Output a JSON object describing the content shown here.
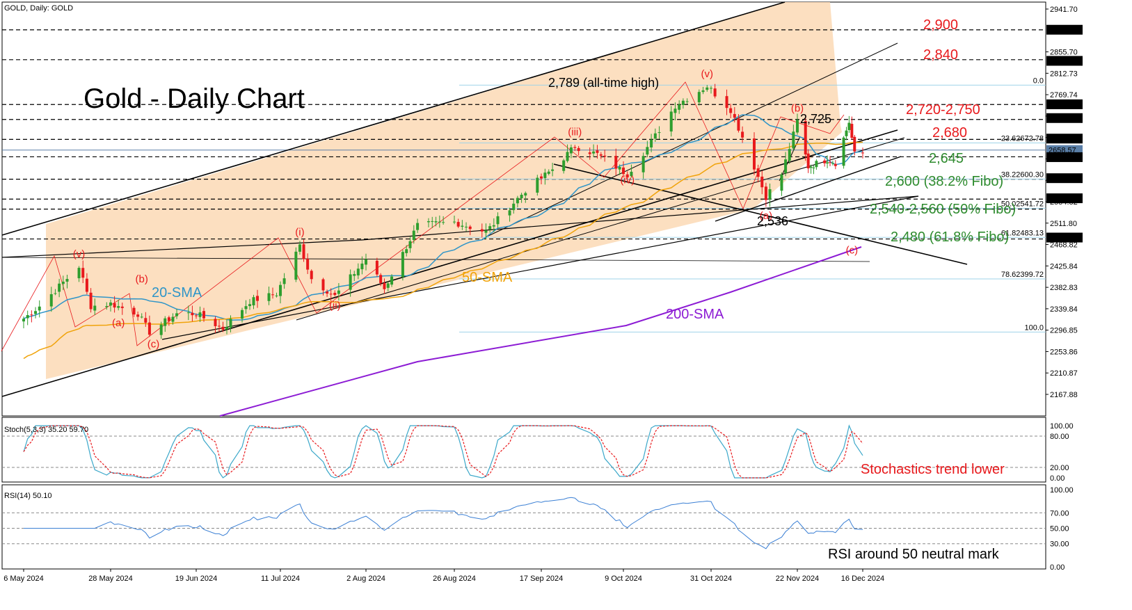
{
  "window": {
    "header": "GOLD, Daily:  GOLD"
  },
  "chart_data": {
    "type": "candlestick",
    "title": "Gold - Daily Chart",
    "x_tick_labels": [
      "6 May 2024",
      "28 May 2024",
      "19 Jun 2024",
      "11 Jul 2024",
      "2 Aug 2024",
      "26 Aug 2024",
      "17 Sep 2024",
      "9 Oct 2024",
      "31 Oct 2024",
      "22 Nov 2024",
      "16 Dec 2024"
    ],
    "price_tick_labels": [
      "2941.70",
      "2855.70",
      "2812.73",
      "2769.74",
      "2726.76",
      "2683.77",
      "2640.79",
      "2597.81",
      "2554.82",
      "2511.80",
      "2468.82",
      "2425.84",
      "2382.83",
      "2339.84",
      "2296.85",
      "2253.86",
      "2210.87",
      "2167.88"
    ],
    "price_badges": [
      {
        "label": "2900.15",
        "price": 2900.15,
        "color": "#000000"
      },
      {
        "label": "2837.66",
        "price": 2837.66,
        "color": "#000000"
      },
      {
        "label": "2750.42",
        "price": 2750.42,
        "color": "#000000"
      },
      {
        "label": "2722.73",
        "price": 2722.73,
        "color": "#000000"
      },
      {
        "label": "2681.55",
        "price": 2681.55,
        "color": "#000000"
      },
      {
        "label": "2658.57",
        "price": 2658.57,
        "color": "#5a7fa8"
      },
      {
        "label": "2644.26",
        "price": 2644.26,
        "color": "#000000"
      },
      {
        "label": "2602.04",
        "price": 2602.04,
        "color": "#000000"
      },
      {
        "label": "2561.68",
        "price": 2561.68,
        "color": "#000000"
      },
      {
        "label": "2482.83",
        "price": 2482.83,
        "color": "#000000"
      }
    ],
    "ylim": [
      2132,
      2960
    ],
    "series_ohlc_approx": "reconstructed close path",
    "close_path": [
      [
        "2024-05-06",
        2320
      ],
      [
        "2024-05-10",
        2345
      ],
      [
        "2024-05-20",
        2425
      ],
      [
        "2024-05-23",
        2345
      ],
      [
        "2024-05-28",
        2350
      ],
      [
        "2024-06-04",
        2330
      ],
      [
        "2024-06-07",
        2293
      ],
      [
        "2024-06-14",
        2330
      ],
      [
        "2024-06-19",
        2330
      ],
      [
        "2024-06-26",
        2300
      ],
      [
        "2024-07-03",
        2355
      ],
      [
        "2024-07-10",
        2370
      ],
      [
        "2024-07-16",
        2467
      ],
      [
        "2024-07-19",
        2400
      ],
      [
        "2024-07-25",
        2365
      ],
      [
        "2024-08-02",
        2440
      ],
      [
        "2024-08-07",
        2380
      ],
      [
        "2024-08-16",
        2507
      ],
      [
        "2024-08-26",
        2514
      ],
      [
        "2024-09-03",
        2494
      ],
      [
        "2024-09-13",
        2578
      ],
      [
        "2024-09-20",
        2620
      ],
      [
        "2024-09-26",
        2666
      ],
      [
        "2024-10-02",
        2650
      ],
      [
        "2024-10-10",
        2610
      ],
      [
        "2024-10-16",
        2675
      ],
      [
        "2024-10-22",
        2748
      ],
      [
        "2024-10-30",
        2787
      ],
      [
        "2024-11-05",
        2740
      ],
      [
        "2024-11-08",
        2685
      ],
      [
        "2024-11-14",
        2565
      ],
      [
        "2024-11-18",
        2610
      ],
      [
        "2024-11-22",
        2716
      ],
      [
        "2024-11-26",
        2625
      ],
      [
        "2024-12-03",
        2640
      ],
      [
        "2024-12-06",
        2633
      ],
      [
        "2024-12-11",
        2715
      ],
      [
        "2024-12-13",
        2650
      ],
      [
        "2024-12-16",
        2652
      ]
    ],
    "moving_averages": [
      {
        "name": "20-SMA",
        "color": "#2f95c8"
      },
      {
        "name": "50-SMA",
        "color": "#f0a30a"
      },
      {
        "name": "200-SMA",
        "color": "#8c1bd4"
      }
    ],
    "horizontal_levels": [
      2900,
      2840,
      2750,
      2720,
      2680,
      2645,
      2600,
      2560,
      2540,
      2480
    ],
    "fibonacci": [
      {
        "label": "0.0",
        "price": 2789
      },
      {
        "label": "23.62672.78",
        "price": 2672.78
      },
      {
        "label": "38.22600.30",
        "price": 2600.3
      },
      {
        "label": "50.02541.72",
        "price": 2541.72
      },
      {
        "label": "61.82483.13",
        "price": 2483.13
      },
      {
        "label": "78.62399.72",
        "price": 2399.72
      },
      {
        "label": "100.0",
        "price": 2293
      }
    ],
    "wave_labels": [
      {
        "label": "(v)",
        "date": "2024-05-20",
        "price": 2443
      },
      {
        "label": "(a)",
        "date": "2024-05-30",
        "price": 2305
      },
      {
        "label": "(b)",
        "date": "2024-06-05",
        "price": 2393
      },
      {
        "label": "(c)",
        "date": "2024-06-08",
        "price": 2262
      },
      {
        "label": "(i)",
        "date": "2024-07-16",
        "price": 2487
      },
      {
        "label": "(ii)",
        "date": "2024-07-25",
        "price": 2340
      },
      {
        "label": "(iii)",
        "date": "2024-09-26",
        "price": 2688
      },
      {
        "label": "(iv)",
        "date": "2024-10-10",
        "price": 2592
      },
      {
        "label": "(v)",
        "date": "2024-10-30",
        "price": 2805
      },
      {
        "label": "(a)",
        "date": "2024-11-14",
        "price": 2520
      },
      {
        "label": "(b)",
        "date": "2024-11-22",
        "price": 2736
      },
      {
        "label": "(c)",
        "date": "2024-12-12",
        "price": 2451
      }
    ],
    "annotations": [
      {
        "text": "2,789 (all-time high)",
        "color": "#000000"
      },
      {
        "text": "2,725",
        "color": "#000000"
      },
      {
        "text": "2,536",
        "color": "#000000"
      },
      {
        "text": "2,900",
        "color": "#e8191c"
      },
      {
        "text": "2,840",
        "color": "#e8191c"
      },
      {
        "text": "2,720-2,750",
        "color": "#e8191c"
      },
      {
        "text": "2,680",
        "color": "#e8191c"
      },
      {
        "text": "2,645",
        "color": "#2e8b2e"
      },
      {
        "text": "2,600 (38.2% Fibo)",
        "color": "#2e8b2e"
      },
      {
        "text": "2,540-2,560 (50% Fibo)",
        "color": "#2e8b2e"
      },
      {
        "text": "2,480 (61.8% Fibo)",
        "color": "#2e8b2e"
      },
      {
        "text": "20-SMA",
        "color": "#2f95c8"
      },
      {
        "text": "50-SMA",
        "color": "#f0a30a"
      },
      {
        "text": "200-SMA",
        "color": "#8c1bd4"
      }
    ],
    "stochastic": {
      "header": "Stoch(5,3,3) 35.20 59.70",
      "k_last": 35.2,
      "d_last": 59.7,
      "ticks": [
        "100.00",
        "80.00",
        "20.00",
        "0.00"
      ],
      "note": "Stochastics trend lower",
      "note_color": "#e8191c",
      "k_color": "#3aa7c9",
      "d_color": "#e8191c"
    },
    "rsi": {
      "header": "RSI(14) 50.10",
      "last": 50.1,
      "ticks": [
        "100.00",
        "70.00",
        "50.00",
        "30.00",
        "0.00"
      ],
      "note": "RSI around 50 neutral mark",
      "color": "#3a7fd4"
    },
    "colors": {
      "up": "#2e9e2e",
      "down": "#e8191c",
      "channel_fill": "#fbd9b5"
    }
  }
}
